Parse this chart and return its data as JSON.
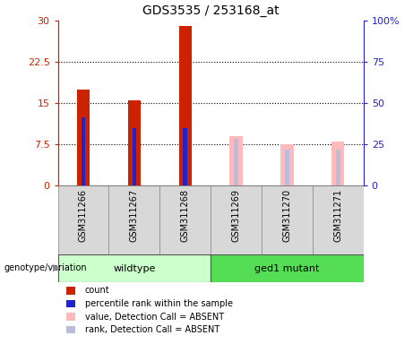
{
  "title": "GDS3535 / 253168_at",
  "samples": [
    "GSM311266",
    "GSM311267",
    "GSM311268",
    "GSM311269",
    "GSM311270",
    "GSM311271"
  ],
  "count_values": [
    17.5,
    15.5,
    29.0,
    null,
    null,
    null
  ],
  "rank_values": [
    12.5,
    10.5,
    10.5,
    null,
    null,
    null
  ],
  "absent_value": [
    null,
    null,
    null,
    9.0,
    7.5,
    8.0
  ],
  "absent_rank": [
    null,
    null,
    null,
    8.5,
    6.5,
    6.5
  ],
  "ylim_left": [
    0,
    30
  ],
  "ylim_right": [
    0,
    100
  ],
  "yticks_left": [
    0,
    7.5,
    15,
    22.5,
    30
  ],
  "yticks_right": [
    0,
    25,
    50,
    75,
    100
  ],
  "ytick_labels_left": [
    "0",
    "7.5",
    "15",
    "22.5",
    "30"
  ],
  "ytick_labels_right": [
    "0",
    "25",
    "50",
    "75",
    "100%"
  ],
  "color_count": "#cc2200",
  "color_rank": "#2222cc",
  "color_absent_value": "#ffbbbb",
  "color_absent_rank": "#bbbbdd",
  "bar_width": 0.25,
  "rank_bar_width": 0.08,
  "group_label_wildtype": "wildtype",
  "group_label_ged1": "ged1 mutant",
  "legend_items": [
    {
      "label": "count",
      "color": "#cc2200"
    },
    {
      "label": "percentile rank within the sample",
      "color": "#2222cc"
    },
    {
      "label": "value, Detection Call = ABSENT",
      "color": "#ffbbbb"
    },
    {
      "label": "rank, Detection Call = ABSENT",
      "color": "#bbbbdd"
    }
  ],
  "genotype_label": "genotype/variation"
}
